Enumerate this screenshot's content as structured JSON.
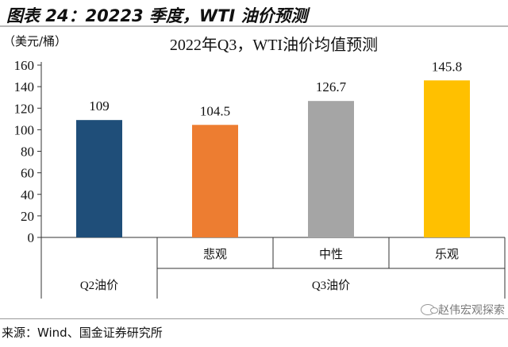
{
  "header": {
    "title": "图表 24：20223 季度，WTI 油价预测"
  },
  "footer": {
    "source": "来源：Wind、国金证券研究所",
    "brand": "赵伟宏观探索"
  },
  "chart_data": {
    "type": "bar",
    "title": "2022年Q3，WTI油价均值预测",
    "ylabel": "（美元/桶）",
    "ylim": [
      0,
      160
    ],
    "yticks": [
      0,
      20,
      40,
      60,
      80,
      100,
      120,
      140,
      160
    ],
    "categories": [
      "",
      "悲观",
      "中性",
      "乐观"
    ],
    "groups": [
      {
        "label": "Q2油价",
        "span": 1
      },
      {
        "label": "Q3油价",
        "span": 3
      }
    ],
    "values": [
      109,
      104.5,
      126.7,
      145.8
    ],
    "value_labels": [
      "109",
      "104.5",
      "126.7",
      "145.8"
    ],
    "colors": [
      "#1f4e79",
      "#ed7d31",
      "#a5a5a5",
      "#ffc000"
    ],
    "grid": false
  }
}
